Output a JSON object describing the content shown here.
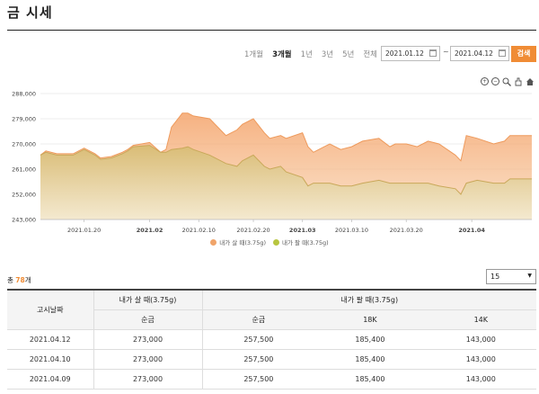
{
  "page": {
    "title": "금 시세"
  },
  "periods": [
    {
      "label": "1개월",
      "active": false
    },
    {
      "label": "3개월",
      "active": true
    },
    {
      "label": "1년",
      "active": false
    },
    {
      "label": "3년",
      "active": false
    },
    {
      "label": "5년",
      "active": false
    },
    {
      "label": "전체",
      "active": false
    }
  ],
  "search": {
    "start_date": "2021.01.12",
    "end_date": "2021.04.12",
    "separator": "~",
    "button_label": "검색"
  },
  "colors": {
    "accent": "#f08c35",
    "buy": "#f0a46a",
    "sell": "#b8c640"
  },
  "chart_data": {
    "type": "area",
    "ylim": [
      243000,
      288000
    ],
    "yticks": [
      "288,000",
      "279,000",
      "270,000",
      "261,000",
      "252,000",
      "243,000"
    ],
    "ytick_values": [
      288000,
      279000,
      270000,
      261000,
      252000,
      243000
    ],
    "xlim": [
      "2021-01-12",
      "2021-04-12"
    ],
    "xticks": [
      {
        "date": "2021-01-20",
        "label": "2021.01.20",
        "bold": false
      },
      {
        "date": "2021-02-01",
        "label": "2021.02",
        "bold": true
      },
      {
        "date": "2021-02-10",
        "label": "2021.02.10",
        "bold": false
      },
      {
        "date": "2021-02-20",
        "label": "2021.02.20",
        "bold": false
      },
      {
        "date": "2021-03-01",
        "label": "2021.03",
        "bold": true
      },
      {
        "date": "2021-03-10",
        "label": "2021.03.10",
        "bold": false
      },
      {
        "date": "2021-03-20",
        "label": "2021.03.20",
        "bold": false
      },
      {
        "date": "2021-04-01",
        "label": "2021.04",
        "bold": true
      }
    ],
    "series": [
      {
        "name": "내가 살 때(3.75g)",
        "x": [
          "2021-01-12",
          "2021-01-13",
          "2021-01-15",
          "2021-01-18",
          "2021-01-20",
          "2021-01-22",
          "2021-01-23",
          "2021-01-25",
          "2021-01-27",
          "2021-01-28",
          "2021-01-29",
          "2021-02-01",
          "2021-02-03",
          "2021-02-04",
          "2021-02-05",
          "2021-02-07",
          "2021-02-08",
          "2021-02-09",
          "2021-02-12",
          "2021-02-15",
          "2021-02-17",
          "2021-02-18",
          "2021-02-20",
          "2021-02-22",
          "2021-02-23",
          "2021-02-25",
          "2021-02-26",
          "2021-03-01",
          "2021-03-02",
          "2021-03-03",
          "2021-03-05",
          "2021-03-06",
          "2021-03-08",
          "2021-03-10",
          "2021-03-12",
          "2021-03-15",
          "2021-03-17",
          "2021-03-18",
          "2021-03-20",
          "2021-03-22",
          "2021-03-24",
          "2021-03-26",
          "2021-03-29",
          "2021-03-30",
          "2021-03-31",
          "2021-04-02",
          "2021-04-05",
          "2021-04-07",
          "2021-04-08",
          "2021-04-10",
          "2021-04-12"
        ],
        "values": [
          266000,
          267500,
          266500,
          266500,
          268500,
          266500,
          265000,
          265500,
          267000,
          268000,
          269500,
          270500,
          267000,
          268000,
          276000,
          281000,
          281000,
          280000,
          279000,
          273000,
          275000,
          277000,
          279000,
          274000,
          272000,
          273000,
          272000,
          274000,
          269000,
          267000,
          269000,
          270000,
          268000,
          269000,
          271000,
          272000,
          269000,
          270000,
          270000,
          269000,
          271000,
          270000,
          266000,
          264000,
          273000,
          272000,
          270000,
          271000,
          273000,
          273000,
          273000
        ]
      },
      {
        "name": "내가 팔 때(3.75g)",
        "x": [
          "2021-01-12",
          "2021-01-13",
          "2021-01-15",
          "2021-01-18",
          "2021-01-20",
          "2021-01-22",
          "2021-01-23",
          "2021-01-25",
          "2021-01-27",
          "2021-01-28",
          "2021-01-29",
          "2021-02-01",
          "2021-02-03",
          "2021-02-04",
          "2021-02-05",
          "2021-02-07",
          "2021-02-08",
          "2021-02-09",
          "2021-02-12",
          "2021-02-15",
          "2021-02-17",
          "2021-02-18",
          "2021-02-20",
          "2021-02-22",
          "2021-02-23",
          "2021-02-25",
          "2021-02-26",
          "2021-03-01",
          "2021-03-02",
          "2021-03-03",
          "2021-03-05",
          "2021-03-06",
          "2021-03-08",
          "2021-03-10",
          "2021-03-12",
          "2021-03-15",
          "2021-03-17",
          "2021-03-18",
          "2021-03-20",
          "2021-03-22",
          "2021-03-24",
          "2021-03-26",
          "2021-03-29",
          "2021-03-30",
          "2021-03-31",
          "2021-04-02",
          "2021-04-05",
          "2021-04-07",
          "2021-04-08",
          "2021-04-10",
          "2021-04-12"
        ],
        "values": [
          266000,
          267000,
          266000,
          266000,
          268000,
          266000,
          264500,
          265000,
          266500,
          267500,
          269000,
          269500,
          267000,
          267000,
          268000,
          268500,
          269000,
          268000,
          266000,
          263000,
          262000,
          264000,
          266000,
          262000,
          261000,
          262000,
          260000,
          258000,
          255000,
          256000,
          256000,
          256000,
          255000,
          255000,
          256000,
          257000,
          256000,
          256000,
          256000,
          256000,
          256000,
          255000,
          254000,
          252000,
          256000,
          257000,
          256000,
          256000,
          257500,
          257500,
          257500
        ]
      }
    ]
  },
  "toolbar": {
    "zoom_in": "+",
    "zoom_out": "−"
  },
  "list": {
    "total_prefix": "총 ",
    "total_count": "78",
    "total_suffix": "개",
    "page_size": "15",
    "header_date": "고시날짜",
    "header_buy": "내가 살 때(3.75g)",
    "header_sell": "내가 팔 때(3.75g)",
    "sub_buy_pure": "순금",
    "sub_sell_pure": "순금",
    "sub_18k": "18K",
    "sub_14k": "14K",
    "rows": [
      {
        "date": "2021.04.12",
        "buy": "273,000",
        "sell_pure": "257,500",
        "k18": "185,400",
        "k14": "143,000"
      },
      {
        "date": "2021.04.10",
        "buy": "273,000",
        "sell_pure": "257,500",
        "k18": "185,400",
        "k14": "143,000"
      },
      {
        "date": "2021.04.09",
        "buy": "273,000",
        "sell_pure": "257,500",
        "k18": "185,400",
        "k14": "143,000"
      }
    ]
  }
}
